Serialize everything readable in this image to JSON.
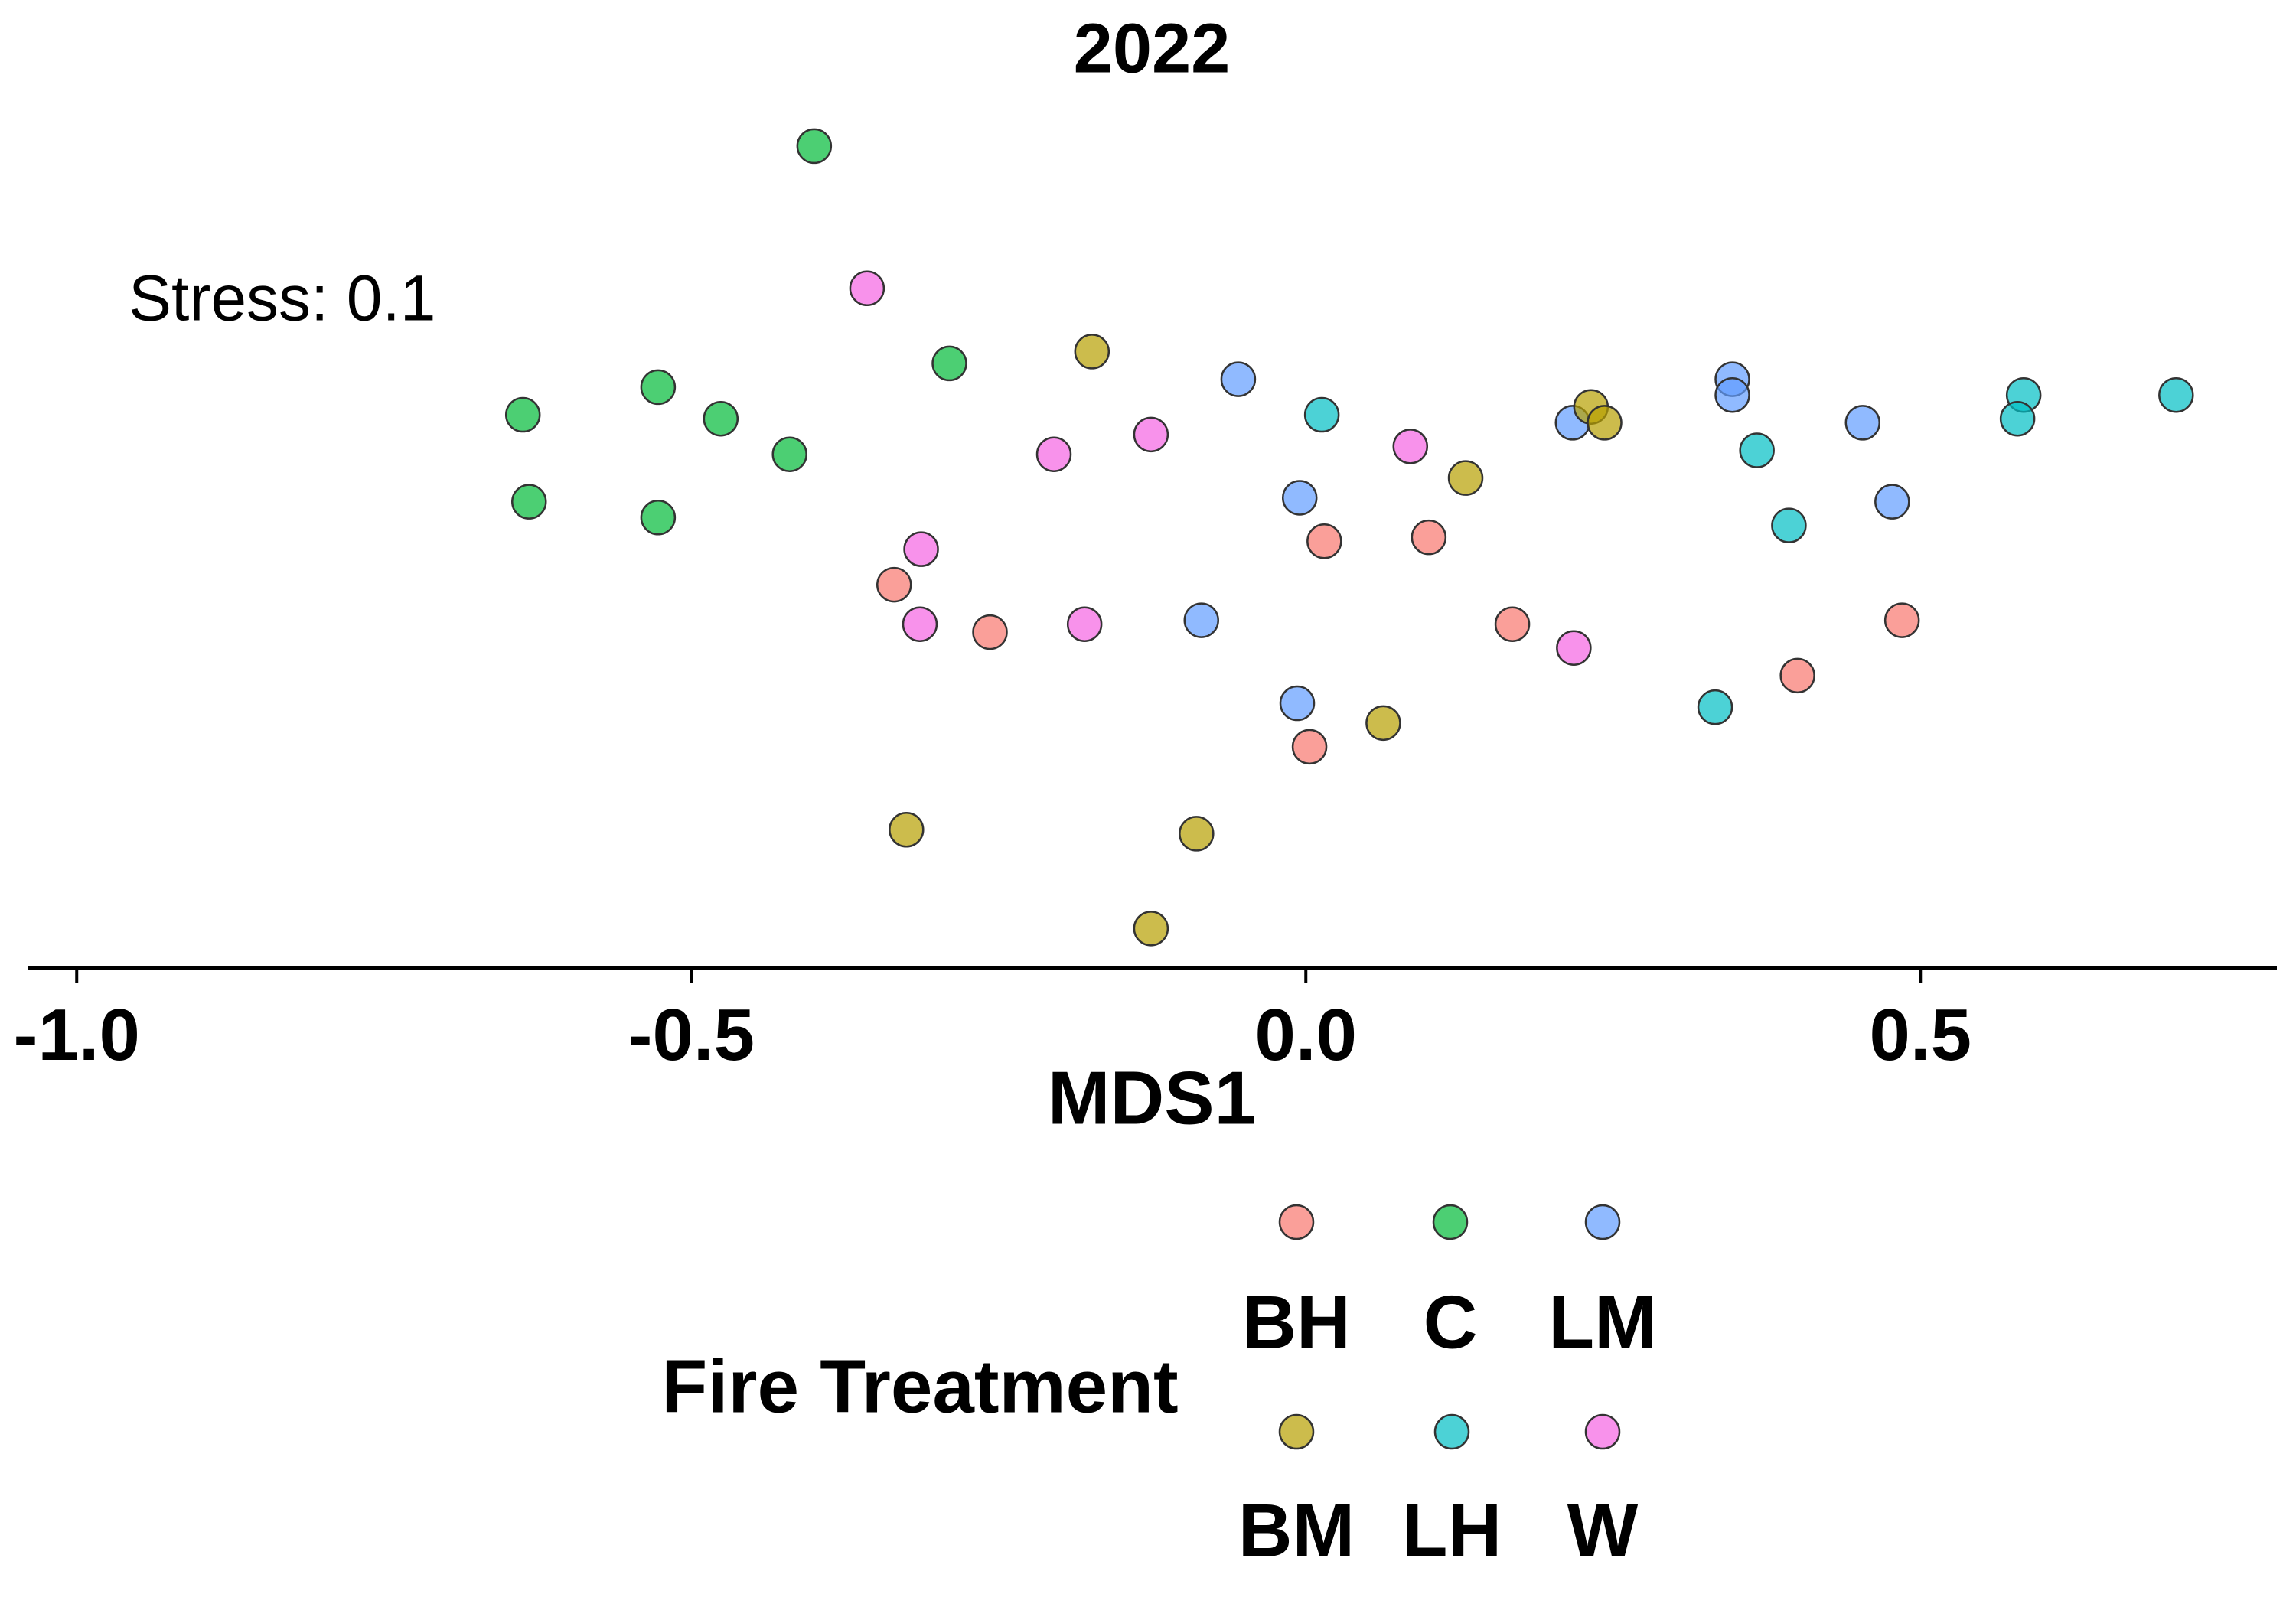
{
  "chart_data": {
    "type": "scatter",
    "title": "2022",
    "xlabel": "MDS1",
    "ylabel": "",
    "annotation": "Stress: 0.1",
    "xlim": [
      -1.04,
      0.79
    ],
    "ylim": [
      -0.6,
      0.62
    ],
    "xticks": [
      -1.0,
      -0.5,
      0.0,
      0.5
    ],
    "xtick_labels": [
      "-1.0",
      "-0.5",
      "0.0",
      "0.5"
    ],
    "y_axis_visible": false,
    "grid": false,
    "legend": {
      "title": "Fire Treatment",
      "placement": "bottom",
      "entries": [
        "BH",
        "C",
        "LM",
        "BM",
        "LH",
        "W"
      ]
    },
    "series": [
      {
        "name": "BH",
        "color": "#F8766D",
        "points": [
          [
            -0.335,
            -0.115
          ],
          [
            -0.257,
            -0.175
          ],
          [
            0.015,
            -0.06
          ],
          [
            0.1,
            -0.055
          ],
          [
            0.168,
            -0.165
          ],
          [
            0.003,
            -0.32
          ],
          [
            0.485,
            -0.16
          ],
          [
            0.4,
            -0.23
          ]
        ]
      },
      {
        "name": "C",
        "color": "#00BA38",
        "points": [
          [
            -0.4,
            0.44
          ],
          [
            -0.29,
            0.165
          ],
          [
            -0.637,
            0.1
          ],
          [
            -0.632,
            -0.01
          ],
          [
            -0.527,
            0.135
          ],
          [
            -0.527,
            -0.03
          ],
          [
            -0.476,
            0.095
          ],
          [
            -0.42,
            0.05
          ]
        ]
      },
      {
        "name": "LM",
        "color": "#619CFF",
        "points": [
          [
            -0.055,
            0.145
          ],
          [
            0.347,
            0.145
          ],
          [
            0.347,
            0.125
          ],
          [
            0.217,
            0.09
          ],
          [
            0.453,
            0.09
          ],
          [
            -0.005,
            -0.005
          ],
          [
            0.477,
            -0.01
          ],
          [
            -0.085,
            -0.16
          ],
          [
            -0.007,
            -0.265
          ]
        ]
      },
      {
        "name": "BM",
        "color": "#B79F00",
        "points": [
          [
            -0.174,
            0.18
          ],
          [
            0.232,
            0.11
          ],
          [
            0.243,
            0.09
          ],
          [
            0.13,
            0.02
          ],
          [
            0.063,
            -0.29
          ],
          [
            -0.325,
            -0.425
          ],
          [
            -0.089,
            -0.43
          ],
          [
            -0.126,
            -0.55
          ]
        ]
      },
      {
        "name": "LH",
        "color": "#00BFC4",
        "points": [
          [
            0.013,
            0.1
          ],
          [
            0.367,
            0.055
          ],
          [
            0.393,
            -0.04
          ],
          [
            0.333,
            -0.27
          ],
          [
            0.584,
            0.125
          ],
          [
            0.579,
            0.095
          ],
          [
            0.708,
            0.125
          ]
        ]
      },
      {
        "name": "W",
        "color": "#F564E3",
        "points": [
          [
            -0.357,
            0.26
          ],
          [
            -0.126,
            0.075
          ],
          [
            -0.205,
            0.05
          ],
          [
            0.085,
            0.06
          ],
          [
            -0.313,
            -0.07
          ],
          [
            -0.314,
            -0.165
          ],
          [
            -0.18,
            -0.165
          ],
          [
            0.218,
            -0.195
          ]
        ]
      }
    ]
  }
}
